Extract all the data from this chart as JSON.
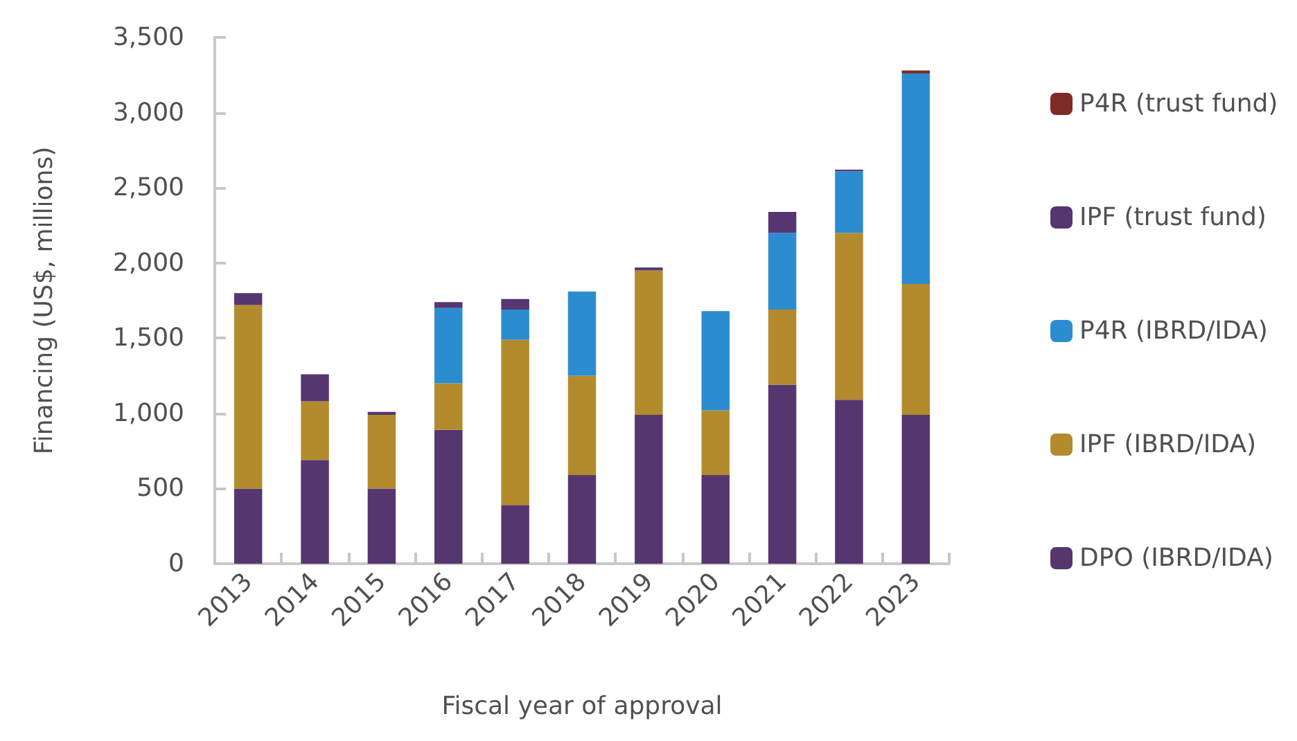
{
  "chart_data": {
    "type": "bar",
    "stacked": true,
    "xlabel": "Fiscal year of approval",
    "ylabel": "Financing (US$, millions)",
    "categories": [
      "2013",
      "2014",
      "2015",
      "2016",
      "2017",
      "2018",
      "2019",
      "2020",
      "2021",
      "2022",
      "2023"
    ],
    "series": [
      {
        "name": "DPO (IBRD/IDA)",
        "color": "#55366f",
        "values": [
          500,
          690,
          500,
          890,
          390,
          590,
          990,
          590,
          1190,
          1090,
          990
        ]
      },
      {
        "name": "IPF (IBRD/IDA)",
        "color": "#b38b2d",
        "values": [
          1220,
          390,
          490,
          310,
          1100,
          660,
          960,
          430,
          500,
          1110,
          870
        ]
      },
      {
        "name": "P4R (IBRD/IDA)",
        "color": "#2b8cd0",
        "values": [
          null,
          null,
          null,
          500,
          200,
          560,
          null,
          660,
          510,
          410,
          1400
        ]
      },
      {
        "name": "IPF (trust fund)",
        "color": "#553670",
        "values": [
          80,
          180,
          20,
          40,
          70,
          null,
          20,
          null,
          140,
          10,
          null
        ]
      },
      {
        "name": "P4R (trust fund)",
        "color": "#7f2a24",
        "values": [
          null,
          null,
          null,
          null,
          null,
          null,
          null,
          null,
          null,
          null,
          20
        ]
      }
    ],
    "ylim": [
      0,
      3500
    ],
    "yticks": [
      0,
      {
        "value": 500,
        "label": "500"
      },
      {
        "value": 1000,
        "label": "1,000"
      },
      {
        "value": 1500,
        "label": "1,500"
      },
      {
        "value": 2000,
        "label": "2,000"
      },
      {
        "value": 2500,
        "label": "2,500"
      },
      {
        "value": 3000,
        "label": "3,000"
      },
      {
        "value": 3500,
        "label": "3,500"
      }
    ],
    "grid": false,
    "legend": "right"
  }
}
